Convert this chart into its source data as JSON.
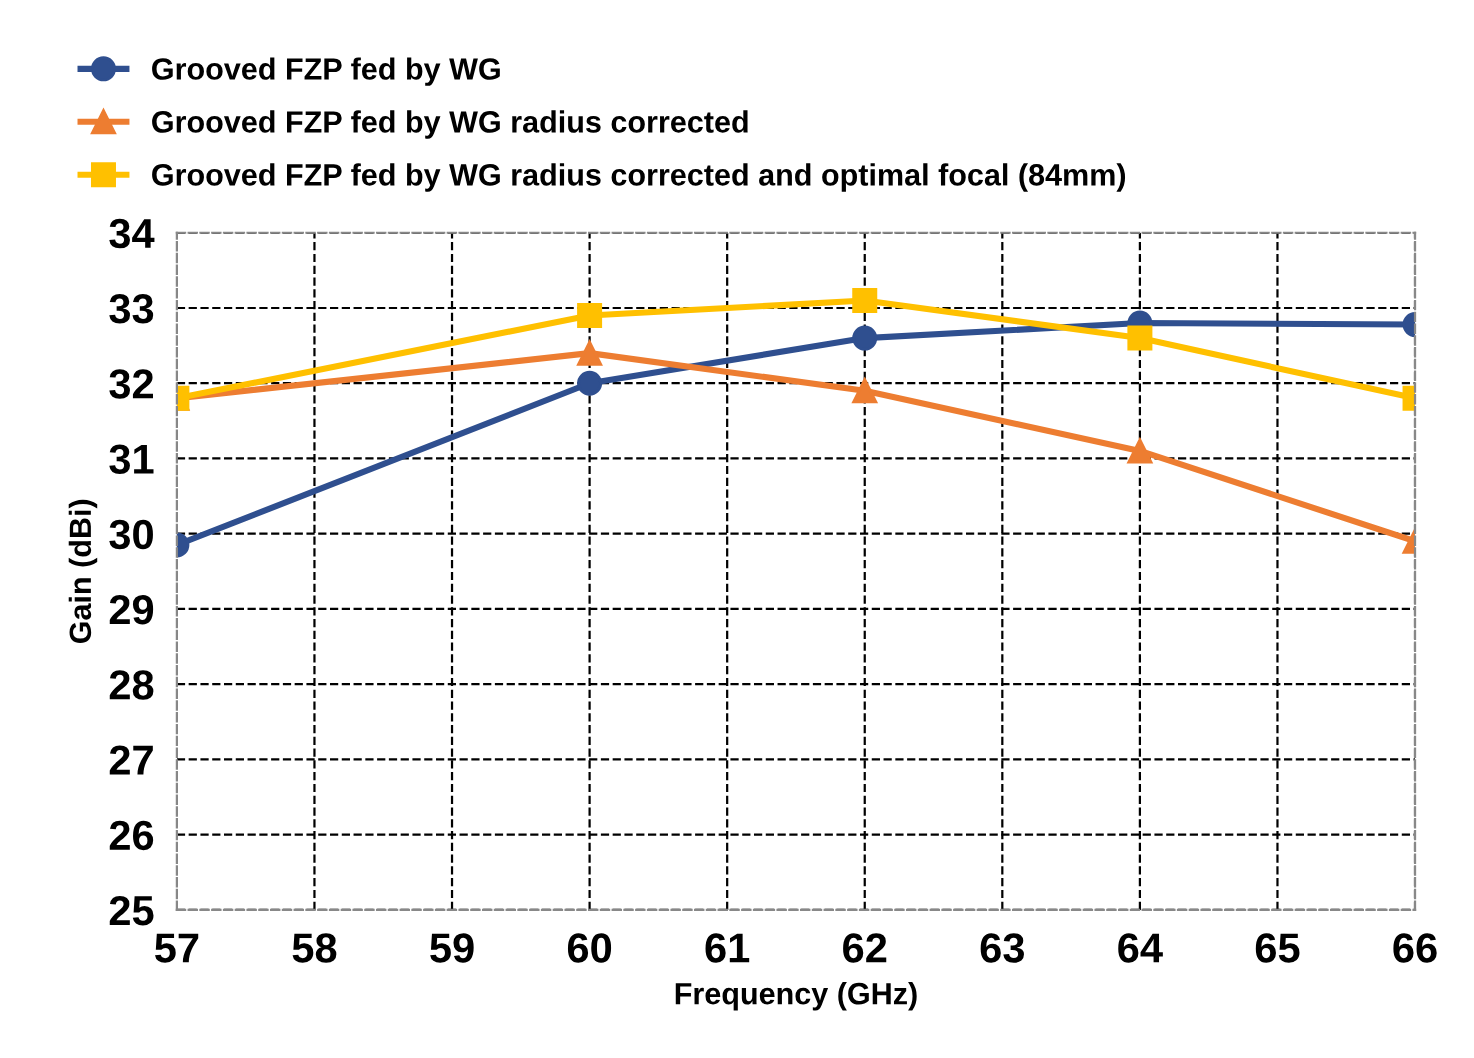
{
  "chart_data": {
    "type": "line",
    "xlabel": "Frequency (GHz)",
    "ylabel": "Gain (dBi)",
    "x": [
      57,
      60,
      62,
      64,
      66
    ],
    "series": [
      {
        "name": "Grooved FZP fed by WG",
        "color": "#2f4f8f",
        "marker": "circle",
        "values": [
          29.85,
          32.0,
          32.6,
          32.8,
          32.78
        ]
      },
      {
        "name": "Grooved FZP fed by WG radius corrected",
        "color": "#ed7d31",
        "marker": "triangle",
        "values": [
          31.8,
          32.4,
          31.9,
          31.1,
          29.9
        ]
      },
      {
        "name": "Grooved FZP fed by WG radius corrected and optimal focal (84mm)",
        "color": "#ffc000",
        "marker": "square",
        "values": [
          31.8,
          32.9,
          33.1,
          32.6,
          31.8
        ]
      }
    ],
    "xlim": [
      57,
      66
    ],
    "xticks": [
      57,
      58,
      59,
      60,
      61,
      62,
      63,
      64,
      65,
      66
    ],
    "ylim": [
      25,
      34
    ],
    "yticks": [
      25,
      26,
      27,
      28,
      29,
      30,
      31,
      32,
      33,
      34
    ],
    "grid": true,
    "legend": "top",
    "line_style": "solid"
  }
}
